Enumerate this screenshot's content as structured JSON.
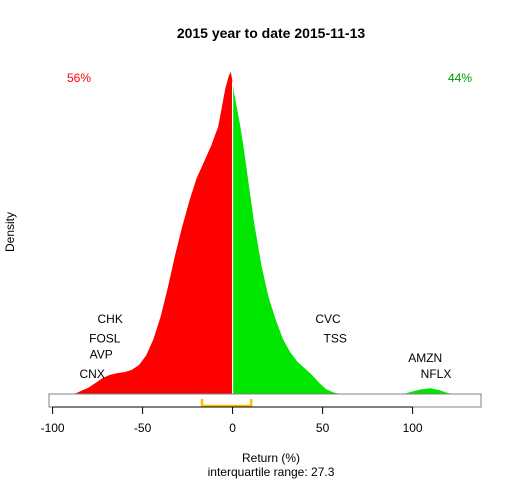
{
  "chart_data": {
    "type": "area",
    "title": "2015  year to date 2015-11-13",
    "xlabel": "Return (%)",
    "ylabel": "Density",
    "subtitle": "interquartile range: 27.3",
    "xlim": [
      -102,
      138
    ],
    "ylim": [
      0,
      1.0
    ],
    "xticks": [
      -100,
      -50,
      0,
      50,
      100
    ],
    "split_at": 0,
    "negative_share": "56%",
    "positive_share": "44%",
    "colors": {
      "negative": "#ff0000",
      "positive": "#00e600",
      "iqr": "#ffc000"
    },
    "iqr": [
      -17,
      10.3
    ],
    "density": {
      "x": [
        -88,
        -84,
        -80,
        -76,
        -72,
        -68,
        -64,
        -60,
        -56,
        -52,
        -48,
        -44,
        -40,
        -36,
        -32,
        -28,
        -24,
        -20,
        -16,
        -12,
        -8,
        -6,
        -4,
        -2,
        -1,
        0,
        1,
        2,
        4,
        6,
        8,
        10,
        12,
        16,
        20,
        24,
        28,
        32,
        36,
        40,
        44,
        48,
        52,
        56,
        60,
        64,
        68,
        72,
        76,
        80,
        85,
        90,
        95,
        100,
        105,
        110,
        115,
        118,
        122
      ],
      "y": [
        0.0,
        0.01,
        0.02,
        0.035,
        0.05,
        0.06,
        0.065,
        0.068,
        0.075,
        0.09,
        0.12,
        0.17,
        0.24,
        0.33,
        0.43,
        0.52,
        0.6,
        0.67,
        0.72,
        0.77,
        0.83,
        0.89,
        0.95,
        0.99,
        1.0,
        0.97,
        0.93,
        0.9,
        0.84,
        0.77,
        0.69,
        0.61,
        0.53,
        0.4,
        0.3,
        0.23,
        0.17,
        0.13,
        0.1,
        0.08,
        0.06,
        0.035,
        0.015,
        0.005,
        0.0,
        0.0,
        0.0,
        0.0,
        0.0,
        0.0,
        0.0,
        0.0,
        0.0,
        0.008,
        0.015,
        0.018,
        0.012,
        0.006,
        0.0
      ]
    },
    "annotations": [
      {
        "text": "CHK",
        "x": -68,
        "y": 0.22
      },
      {
        "text": "FOSL",
        "x": -71,
        "y": 0.16
      },
      {
        "text": "AVP",
        "x": -73,
        "y": 0.11
      },
      {
        "text": "CNX",
        "x": -78,
        "y": 0.05
      },
      {
        "text": "CVC",
        "x": 53,
        "y": 0.22
      },
      {
        "text": "TSS",
        "x": 57,
        "y": 0.16
      },
      {
        "text": "AMZN",
        "x": 107,
        "y": 0.1
      },
      {
        "text": "NFLX",
        "x": 113,
        "y": 0.05
      }
    ]
  }
}
